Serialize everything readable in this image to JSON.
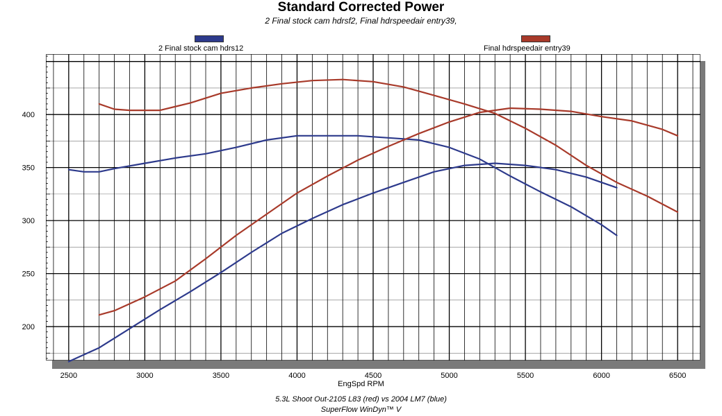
{
  "chart_data": {
    "type": "line",
    "title": "Standard Corrected Power",
    "subtitle": "2 Final stock cam hdrsf2, Final hdrspeedair entry39,",
    "xlabel": "EngSpd RPM",
    "ylabel": "",
    "xlim": [
      2350,
      6650
    ],
    "ylim": [
      168,
      457
    ],
    "x_ticks": [
      2500,
      3000,
      3500,
      4000,
      4500,
      5000,
      5500,
      6000,
      6500
    ],
    "y_ticks": [
      200,
      250,
      300,
      350,
      400
    ],
    "grid": true,
    "legend": [
      "2 Final stock cam hdrs12",
      "Final hdrspeedair entry39"
    ],
    "captions": [
      "5.3L Shoot Out-2105 L83 (red) vs 2004 LM7 (blue)",
      "SuperFlow WinDyn™ V"
    ],
    "series": [
      {
        "name": "2 Final stock cam hdrs12",
        "color": "#2d3a8c",
        "curves": [
          {
            "label": "hp",
            "x": [
              2500,
              2700,
              2900,
              3100,
              3300,
              3500,
              3700,
              3900,
              4100,
              4300,
              4500,
              4700,
              4900,
              5100,
              5300,
              5500,
              5700,
              5900,
              6100
            ],
            "y": [
              167,
              180,
              198,
              216,
              233,
              251,
              270,
              288,
              302,
              315,
              326,
              336,
              346,
              352,
              354,
              352,
              348,
              341,
              331
            ]
          },
          {
            "label": "torque",
            "x": [
              2500,
              2600,
              2700,
              2800,
              3000,
              3200,
              3400,
              3600,
              3800,
              4000,
              4200,
              4400,
              4600,
              4800,
              5000,
              5200,
              5400,
              5600,
              5800,
              6000,
              6100
            ],
            "y": [
              348,
              346,
              346,
              349,
              354,
              359,
              363,
              369,
              376,
              380,
              380,
              380,
              378,
              376,
              369,
              358,
              342,
              327,
              313,
              296,
              286
            ]
          }
        ]
      },
      {
        "name": "Final hdrspeedair entry39",
        "color": "#a83a2a",
        "curves": [
          {
            "label": "hp",
            "x": [
              2700,
              2800,
              3000,
              3200,
              3400,
              3600,
              3800,
              4000,
              4200,
              4400,
              4600,
              4800,
              5000,
              5200,
              5400,
              5600,
              5800,
              6000,
              6200,
              6400,
              6500
            ],
            "y": [
              211,
              215,
              228,
              243,
              264,
              286,
              306,
              326,
              342,
              357,
              370,
              382,
              393,
              402,
              406,
              405,
              403,
              398,
              394,
              386,
              380
            ]
          },
          {
            "label": "torque",
            "x": [
              2700,
              2800,
              2900,
              3100,
              3300,
              3500,
              3700,
              3900,
              4100,
              4300,
              4500,
              4700,
              4900,
              5100,
              5300,
              5500,
              5700,
              5900,
              6100,
              6300,
              6500
            ],
            "y": [
              410,
              405,
              404,
              404,
              411,
              420,
              425,
              429,
              432,
              433,
              431,
              426,
              418,
              410,
              401,
              387,
              371,
              352,
              336,
              323,
              308
            ]
          }
        ]
      }
    ]
  }
}
